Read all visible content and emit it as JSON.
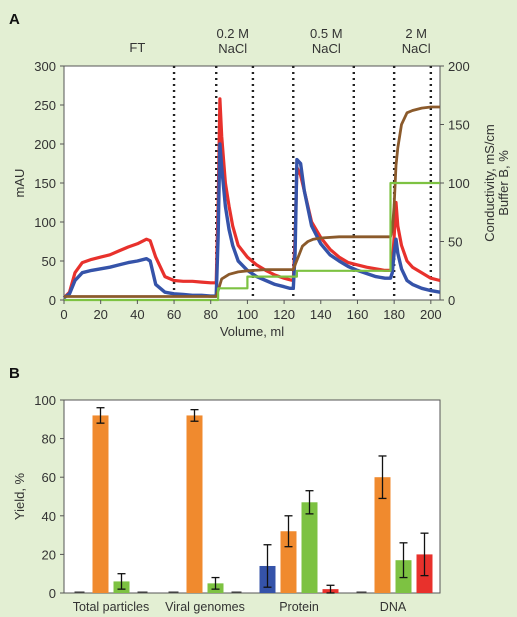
{
  "colors": {
    "background": "#e3efd3",
    "red": "#e8312c",
    "blue": "#3553a9",
    "brown": "#8b5a2b",
    "green": "#7dc242",
    "orange": "#f08a2e",
    "dotted": "#222222"
  },
  "chart_data": [
    {
      "panel": "A",
      "type": "line",
      "xlabel": "Volume, ml",
      "ylabel": "mAU",
      "ylabel_right": [
        "Conductivity, mS/cm",
        "Buffer B, %"
      ],
      "xlim": [
        0,
        205
      ],
      "ylim": [
        0,
        300
      ],
      "ylim_right": [
        0,
        200
      ],
      "xticks": [
        0,
        20,
        40,
        60,
        80,
        100,
        120,
        140,
        160,
        180,
        200
      ],
      "yticks": [
        0,
        50,
        100,
        150,
        200,
        250,
        300
      ],
      "yticks_right": [
        0,
        50,
        100,
        150,
        200
      ],
      "annotations": [
        {
          "lines": [
            "FT"
          ],
          "x": 40
        },
        {
          "lines": [
            "0.2 M",
            "NaCl"
          ],
          "x": 92
        },
        {
          "lines": [
            "0.5 M",
            "NaCl"
          ],
          "x": 143
        },
        {
          "lines": [
            "2 M",
            "NaCl"
          ],
          "x": 192
        }
      ],
      "dotted_lines_x": [
        60,
        83,
        103,
        125,
        158,
        180,
        200
      ],
      "series": [
        {
          "color": "red",
          "axis": "left",
          "x": [
            0,
            3,
            6,
            10,
            15,
            20,
            25,
            30,
            35,
            40,
            45,
            47,
            50,
            55,
            60,
            65,
            70,
            75,
            80,
            83,
            84,
            85,
            86,
            88,
            90,
            92,
            95,
            100,
            105,
            110,
            115,
            120,
            123,
            125,
            126,
            127,
            129,
            131,
            135,
            140,
            145,
            150,
            155,
            160,
            165,
            170,
            175,
            178,
            179,
            180,
            181,
            182,
            184,
            187,
            190,
            195,
            200,
            205
          ],
          "y": [
            3,
            10,
            35,
            48,
            52,
            55,
            58,
            63,
            68,
            72,
            78,
            76,
            55,
            30,
            25,
            24,
            24,
            23,
            22,
            22,
            120,
            258,
            210,
            150,
            120,
            95,
            70,
            55,
            45,
            38,
            32,
            28,
            26,
            25,
            80,
            170,
            160,
            140,
            100,
            80,
            65,
            55,
            48,
            45,
            42,
            40,
            38,
            38,
            45,
            80,
            125,
            95,
            70,
            50,
            42,
            35,
            28,
            25
          ]
        },
        {
          "color": "blue",
          "axis": "left",
          "x": [
            0,
            3,
            6,
            10,
            15,
            20,
            25,
            30,
            35,
            40,
            45,
            47,
            50,
            55,
            60,
            65,
            70,
            75,
            80,
            83,
            84,
            85,
            86,
            88,
            90,
            92,
            95,
            100,
            105,
            110,
            115,
            120,
            123,
            125,
            126,
            127,
            129,
            131,
            135,
            140,
            145,
            150,
            155,
            160,
            165,
            170,
            175,
            178,
            179,
            180,
            181,
            182,
            184,
            187,
            190,
            195,
            200,
            205
          ],
          "y": [
            3,
            8,
            25,
            35,
            38,
            40,
            42,
            45,
            48,
            50,
            53,
            50,
            20,
            10,
            8,
            7,
            6,
            6,
            5,
            5,
            80,
            200,
            170,
            120,
            90,
            70,
            50,
            38,
            30,
            25,
            20,
            17,
            15,
            15,
            60,
            180,
            175,
            140,
            95,
            72,
            58,
            50,
            43,
            38,
            34,
            30,
            28,
            28,
            35,
            60,
            78,
            60,
            40,
            25,
            20,
            15,
            12,
            10
          ]
        },
        {
          "color": "brown",
          "axis": "right",
          "x": [
            0,
            10,
            20,
            30,
            40,
            50,
            60,
            70,
            80,
            83,
            84,
            86,
            90,
            95,
            100,
            110,
            120,
            125,
            126,
            128,
            130,
            133,
            136,
            140,
            150,
            160,
            170,
            178,
            179,
            180,
            181,
            182,
            184,
            187,
            190,
            195,
            200,
            205
          ],
          "y": [
            3,
            3,
            3,
            3,
            3,
            3,
            3,
            3,
            3,
            3,
            8,
            18,
            22,
            24,
            25,
            26,
            26,
            26,
            30,
            38,
            46,
            50,
            52,
            53,
            54,
            54,
            54,
            54,
            60,
            80,
            115,
            130,
            150,
            160,
            162,
            164,
            165,
            165
          ]
        },
        {
          "color": "green",
          "axis": "right",
          "x": [
            0,
            84,
            84,
            100,
            100,
            127,
            127,
            178,
            178,
            205
          ],
          "y": [
            0,
            0,
            10,
            10,
            20,
            20,
            25,
            25,
            100,
            100
          ]
        }
      ]
    },
    {
      "panel": "B",
      "type": "bar",
      "ylabel": "Yield, %",
      "ylim": [
        0,
        100
      ],
      "yticks": [
        0,
        20,
        40,
        60,
        80,
        100
      ],
      "categories": [
        "Total particles",
        "Viral genomes",
        "Protein",
        "DNA"
      ],
      "series": [
        {
          "color": "blue",
          "values": [
            0,
            0,
            14,
            0
          ],
          "errors": [
            0,
            0,
            11,
            0
          ]
        },
        {
          "color": "orange",
          "values": [
            92,
            92,
            32,
            60
          ],
          "errors": [
            4,
            3,
            8,
            11
          ]
        },
        {
          "color": "green",
          "values": [
            6,
            5,
            47,
            17
          ],
          "errors": [
            4,
            3,
            6,
            9
          ]
        },
        {
          "color": "red",
          "values": [
            0,
            0,
            2,
            20
          ],
          "errors": [
            0,
            0,
            2,
            11
          ]
        }
      ]
    }
  ],
  "labels": {
    "panel_a": "A",
    "panel_b": "B"
  }
}
